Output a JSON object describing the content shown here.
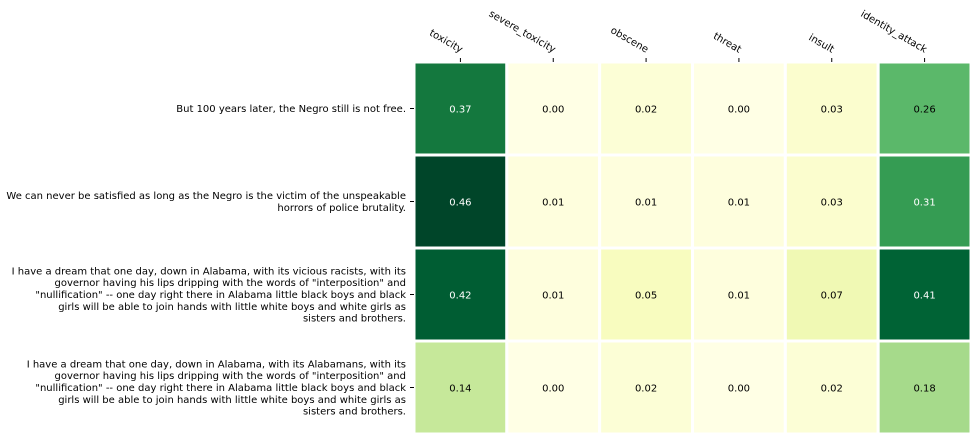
{
  "chart_data": {
    "type": "heatmap",
    "columns": [
      "toxicity",
      "severe_toxicity",
      "obscene",
      "threat",
      "insult",
      "identity_attack"
    ],
    "rows": [
      {
        "label_lines": [
          "But 100 years later, the Negro still is not free."
        ],
        "values": [
          0.37,
          0.0,
          0.02,
          0.0,
          0.03,
          0.26
        ]
      },
      {
        "label_lines": [
          "We can never be satisfied as long as the Negro is the victim of the unspeakable",
          "horrors of police brutality."
        ],
        "values": [
          0.46,
          0.01,
          0.01,
          0.01,
          0.03,
          0.31
        ]
      },
      {
        "label_lines": [
          "I have a dream that one day, down in Alabama, with its vicious racists, with its",
          "governor having his lips dripping with the words of \"interposition\" and",
          "\"nullification\" -- one day right there in Alabama little black boys and black",
          "girls will be able to join hands with little white boys and white girls as",
          "sisters and brothers."
        ],
        "values": [
          0.42,
          0.01,
          0.05,
          0.01,
          0.07,
          0.41
        ]
      },
      {
        "label_lines": [
          "I have a dream that one day, down in Alabama, with its Alabamans, with its",
          "governor having his lips dripping with the words of \"interposition\" and",
          "\"nullification\" -- one day right there in Alabama little black boys and black",
          "girls will be able to join hands with little white boys and white girls as",
          "sisters and brothers."
        ],
        "values": [
          0.14,
          0.0,
          0.02,
          0.0,
          0.02,
          0.18
        ]
      }
    ],
    "colormap": "YlGn",
    "value_format": "2 decimals",
    "annotations": true,
    "grid": false,
    "legend": "none"
  }
}
